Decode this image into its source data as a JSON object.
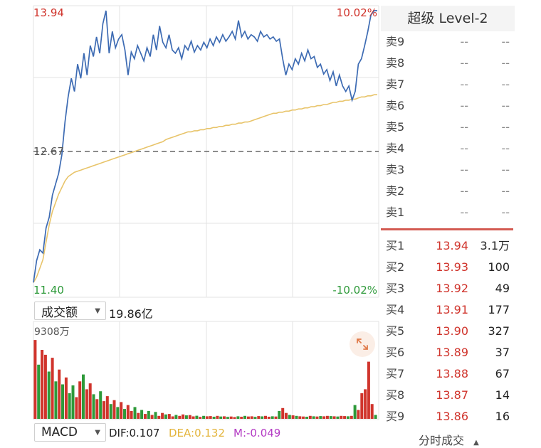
{
  "colors": {
    "price_line": "#3d6bb3",
    "avg_line": "#e8c46a",
    "up": "#d0342c",
    "down": "#2e9a3a",
    "ref_line": "#666666"
  },
  "price_chart": {
    "high_price": "13.94",
    "high_pct": "10.02%",
    "ref_price": "12.67",
    "low_price": "11.40",
    "low_pct": "-10.02%"
  },
  "volume_header": {
    "dropdown_label": "成交额",
    "total": "19.86亿",
    "max_label": "9308万"
  },
  "indicator": {
    "dropdown_label": "MACD",
    "dif": "DIF:0.107",
    "dea": "DEA:0.132",
    "m": "M:-0.049"
  },
  "order_book": {
    "title": "超级 Level-2",
    "asks": [
      {
        "name": "卖9",
        "price": "--",
        "vol": "--"
      },
      {
        "name": "卖8",
        "price": "--",
        "vol": "--"
      },
      {
        "name": "卖7",
        "price": "--",
        "vol": "--"
      },
      {
        "name": "卖6",
        "price": "--",
        "vol": "--"
      },
      {
        "name": "卖5",
        "price": "--",
        "vol": "--"
      },
      {
        "name": "卖4",
        "price": "--",
        "vol": "--"
      },
      {
        "name": "卖3",
        "price": "--",
        "vol": "--"
      },
      {
        "name": "卖2",
        "price": "--",
        "vol": "--"
      },
      {
        "name": "卖1",
        "price": "--",
        "vol": "--"
      }
    ],
    "bids": [
      {
        "name": "买1",
        "price": "13.94",
        "vol": "3.1万"
      },
      {
        "name": "买2",
        "price": "13.93",
        "vol": "100"
      },
      {
        "name": "买3",
        "price": "13.92",
        "vol": "49"
      },
      {
        "name": "买4",
        "price": "13.91",
        "vol": "177"
      },
      {
        "name": "买5",
        "price": "13.90",
        "vol": "327"
      },
      {
        "name": "买6",
        "price": "13.89",
        "vol": "37"
      },
      {
        "name": "买7",
        "price": "13.88",
        "vol": "67"
      },
      {
        "name": "买8",
        "price": "13.87",
        "vol": "14"
      },
      {
        "name": "买9",
        "price": "13.86",
        "vol": "16"
      }
    ],
    "footer_tab": "分时成交"
  },
  "chart_data": {
    "type": "line",
    "ylim": [
      11.4,
      13.94
    ],
    "ref": 12.67,
    "series": [
      {
        "values": [
          11.45,
          11.65,
          11.75,
          11.72,
          11.95,
          12.05,
          12.25,
          12.35,
          12.45,
          12.62,
          12.92,
          13.15,
          13.32,
          13.2,
          13.45,
          13.32,
          13.55,
          13.35,
          13.62,
          13.52,
          13.7,
          13.55,
          13.82,
          13.94,
          13.55,
          13.75,
          13.6,
          13.68,
          13.72,
          13.58,
          13.35,
          13.56,
          13.5,
          13.62,
          13.55,
          13.48,
          13.6,
          13.52,
          13.72,
          13.58,
          13.8,
          13.65,
          13.6,
          13.72,
          13.58,
          13.55,
          13.6,
          13.5,
          13.62,
          13.58,
          13.66,
          13.56,
          13.62,
          13.58,
          13.65,
          13.6,
          13.68,
          13.62,
          13.7,
          13.65,
          13.72,
          13.66,
          13.7,
          13.75,
          13.68,
          13.85,
          13.7,
          13.75,
          13.68,
          13.72,
          13.7,
          13.66,
          13.75,
          13.7,
          13.72,
          13.68,
          13.7,
          13.66,
          13.68,
          13.5,
          13.35,
          13.45,
          13.4,
          13.5,
          13.45,
          13.55,
          13.48,
          13.58,
          13.5,
          13.52,
          13.42,
          13.45,
          13.36,
          13.4,
          13.3,
          13.38,
          13.25,
          13.35,
          13.25,
          13.2,
          13.25,
          13.12,
          13.2,
          13.45,
          13.5,
          13.62,
          13.75,
          13.9,
          13.94,
          13.94
        ]
      },
      {
        "values": [
          11.45,
          11.5,
          11.58,
          11.66,
          11.82,
          11.98,
          12.1,
          12.18,
          12.26,
          12.32,
          12.38,
          12.42,
          12.44,
          12.46,
          12.47,
          12.48,
          12.49,
          12.5,
          12.51,
          12.52,
          12.53,
          12.54,
          12.55,
          12.56,
          12.57,
          12.58,
          12.59,
          12.6,
          12.61,
          12.62,
          12.63,
          12.64,
          12.65,
          12.66,
          12.67,
          12.68,
          12.69,
          12.7,
          12.71,
          12.72,
          12.73,
          12.74,
          12.76,
          12.77,
          12.78,
          12.79,
          12.8,
          12.81,
          12.82,
          12.83,
          12.83,
          12.84,
          12.84,
          12.85,
          12.85,
          12.86,
          12.86,
          12.87,
          12.87,
          12.88,
          12.88,
          12.89,
          12.89,
          12.9,
          12.9,
          12.91,
          12.91,
          12.92,
          12.92,
          12.93,
          12.94,
          12.95,
          12.96,
          12.97,
          12.98,
          12.99,
          13.0,
          13.0,
          13.01,
          13.01,
          13.02,
          13.02,
          13.03,
          13.03,
          13.04,
          13.04,
          13.05,
          13.05,
          13.06,
          13.06,
          13.07,
          13.07,
          13.08,
          13.08,
          13.09,
          13.1,
          13.1,
          13.11,
          13.11,
          13.12,
          13.12,
          13.13,
          13.13,
          13.14,
          13.15,
          13.15,
          13.16,
          13.16,
          13.17,
          13.17
        ]
      }
    ],
    "volume": {
      "ylim": [
        0,
        9308
      ],
      "values": [
        8000,
        5500,
        7000,
        6500,
        4800,
        6200,
        3800,
        5000,
        3500,
        4200,
        2600,
        3400,
        2200,
        3800,
        4500,
        3000,
        3600,
        2500,
        2000,
        2800,
        1800,
        2300,
        1500,
        1900,
        1200,
        1700,
        1000,
        1400,
        800,
        1200,
        600,
        900,
        500,
        800,
        400,
        700,
        300,
        600,
        450,
        500,
        250,
        400,
        300,
        450,
        350,
        380,
        250,
        320,
        200,
        300,
        260,
        280,
        220,
        300,
        240,
        260,
        200,
        240,
        180,
        260,
        220,
        300,
        240,
        260,
        200,
        280,
        250,
        300,
        220,
        260,
        240,
        800,
        1100,
        600,
        400,
        350,
        300,
        260,
        240,
        220,
        300,
        260,
        240,
        280,
        260,
        300,
        280,
        260,
        240,
        300,
        280,
        260,
        300,
        1400,
        900,
        2600,
        3000,
        5800,
        1500,
        400
      ],
      "up": [
        1,
        0,
        1,
        1,
        0,
        1,
        0,
        1,
        0,
        1,
        0,
        0,
        1,
        1,
        0,
        1,
        1,
        0,
        1,
        0,
        1,
        1,
        0,
        1,
        0,
        1,
        0,
        1,
        1,
        0,
        1,
        0,
        1,
        0,
        1,
        0,
        1,
        1,
        0,
        1,
        1,
        0,
        1,
        1,
        0,
        1,
        1,
        0,
        1,
        0,
        1,
        1,
        0,
        1,
        0,
        1,
        0,
        1,
        1,
        0,
        1,
        0,
        1,
        1,
        0,
        1,
        0,
        1,
        1,
        0,
        1,
        0,
        1,
        1,
        0,
        1,
        0,
        1,
        1,
        0,
        1,
        0,
        1,
        0,
        1,
        1,
        0,
        1,
        0,
        1,
        1,
        0,
        1,
        0,
        1,
        1,
        1,
        1,
        1,
        0
      ]
    }
  }
}
